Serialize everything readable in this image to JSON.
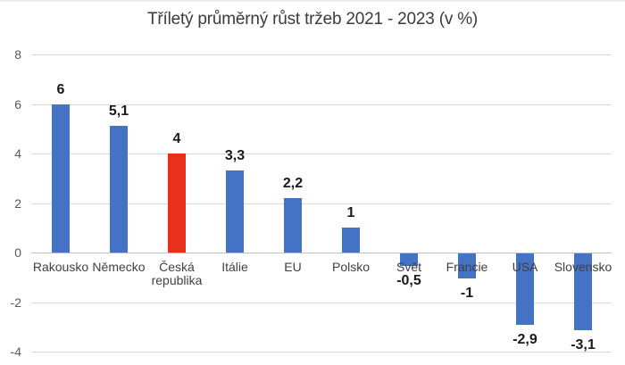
{
  "window": {
    "background": "#FFFFFF",
    "top_border_color": "#ECECEC"
  },
  "chart_data": {
    "type": "bar",
    "title": "Tříletý průměrný růst tržeb 2021 - 2023 (v %)",
    "categories": [
      "Rakousko",
      "Německo",
      "Česká republika",
      "Itálie",
      "EU",
      "Polsko",
      "Svět",
      "Francie",
      "USA",
      "Slovensko"
    ],
    "values": [
      6,
      5.1,
      4,
      3.3,
      2.2,
      1,
      -0.5,
      -1,
      -2.9,
      -3.1
    ],
    "value_labels": [
      "6",
      "5,1",
      "4",
      "3,3",
      "2,2",
      "1",
      "-0,5",
      "-1",
      "-2,9",
      "-3,1"
    ],
    "highlighted_category": "Česká republika",
    "highlighted_index": 2,
    "xlabel": "",
    "ylabel": "",
    "ylim": [
      -4,
      8
    ],
    "yticks": [
      8,
      6,
      4,
      2,
      0,
      -2,
      -4
    ],
    "ytick_labels": [
      "8",
      "6",
      "4",
      "2",
      "0",
      "-2",
      "-4"
    ],
    "grid": true,
    "legend": false,
    "colors": {
      "bar_default": "#4472C4",
      "bar_highlight": "#E8301D",
      "gridline": "#D9D9D9",
      "axis_line": "#BFBFBF",
      "title_text": "#3B3B3B",
      "tick_text": "#595959",
      "category_text": "#404040",
      "data_label_text": "#1A1A1A"
    }
  }
}
